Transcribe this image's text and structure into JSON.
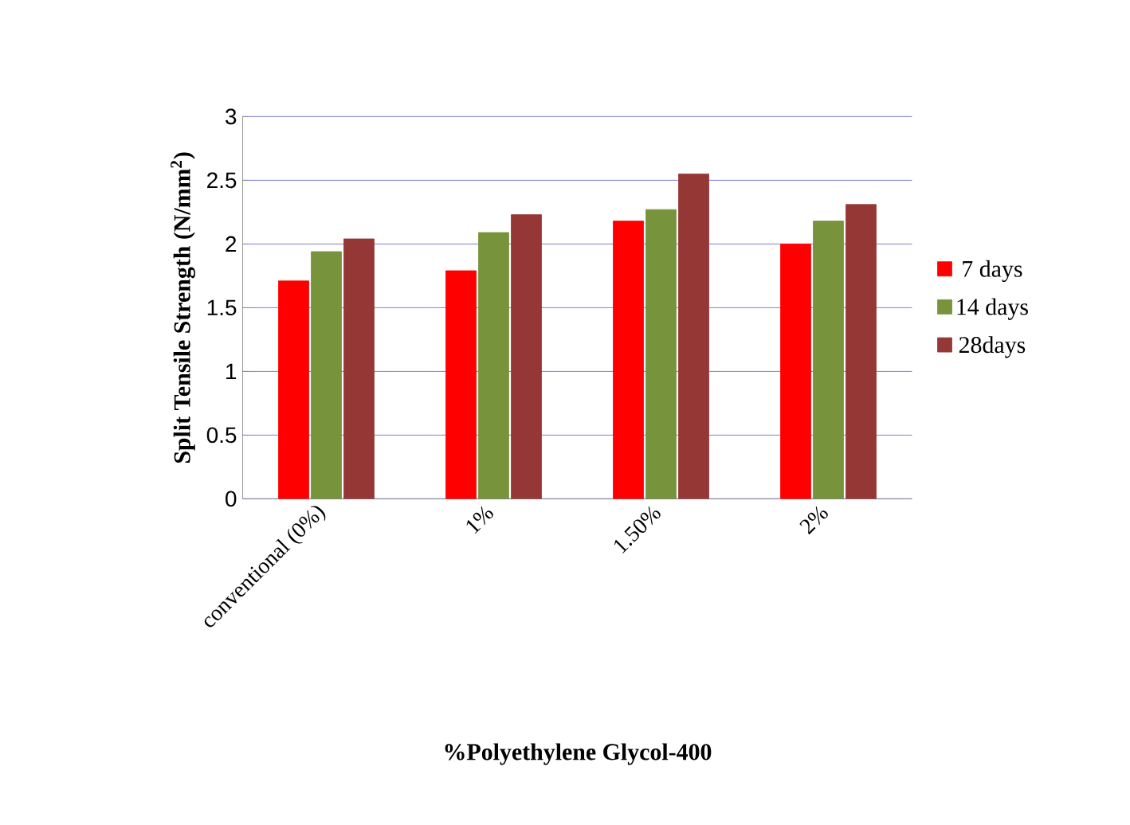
{
  "chart_data": {
    "type": "bar",
    "xlabel": "%Polyethylene Glycol-400",
    "ylabel": "Split Tensile Strength (N/mm$^{2}$)",
    "categories": [
      "conventional (0%)",
      "1%",
      "1.50%",
      "2%"
    ],
    "series": [
      {
        "name": "7 days",
        "color": "#ff0000",
        "values": [
          1.71,
          1.79,
          2.18,
          2.0
        ]
      },
      {
        "name": "14 days",
        "color": "#77933c",
        "values": [
          1.94,
          2.09,
          2.27,
          2.18
        ]
      },
      {
        "name": "28days",
        "color": "#953735",
        "values": [
          2.04,
          2.23,
          2.55,
          2.31
        ]
      }
    ],
    "ylim": [
      0,
      3
    ],
    "yticks": [
      0,
      0.5,
      1,
      1.5,
      2,
      2.5,
      3
    ],
    "grid": "y",
    "legend": "right"
  }
}
